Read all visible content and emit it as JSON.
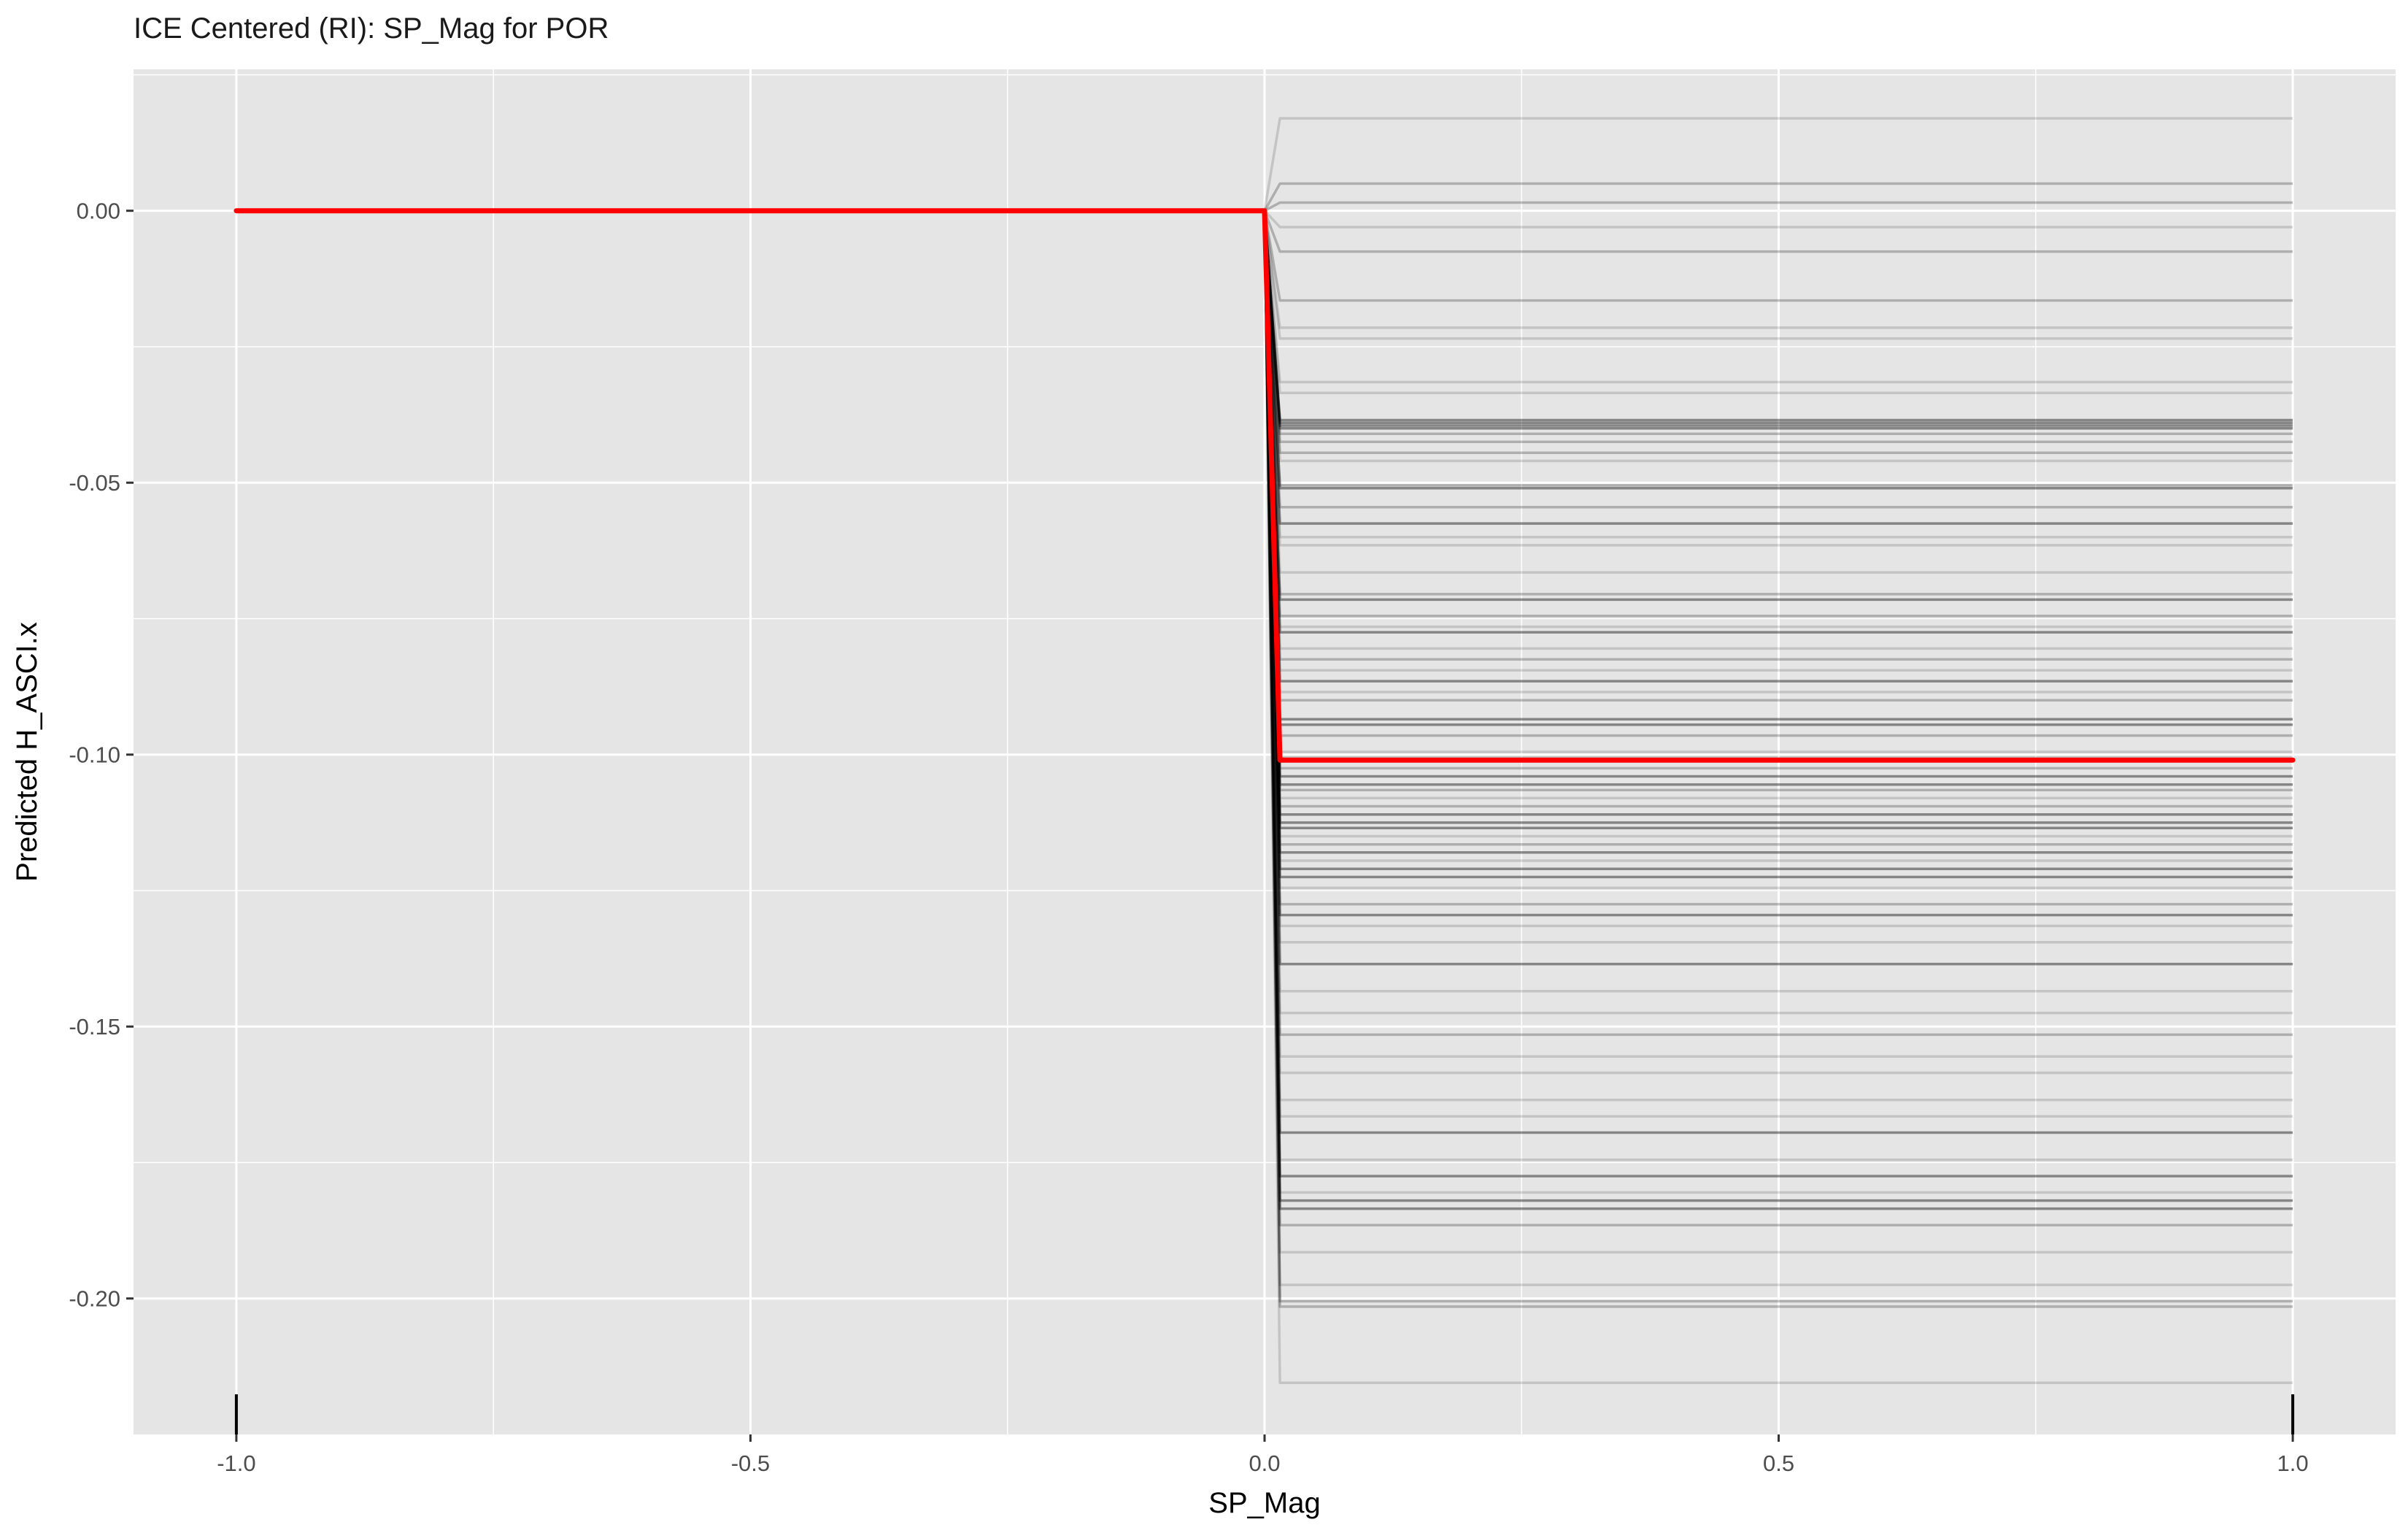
{
  "chart_data": {
    "type": "line",
    "title": "ICE Centered (RI): SP_Mag for POR",
    "xlabel": "SP_Mag",
    "ylabel": "Predicted H_ASCI.x",
    "xlim": [
      -1.1,
      1.1
    ],
    "ylim": [
      -0.225,
      0.026
    ],
    "x_ticks": [
      -1.0,
      -0.5,
      0.0,
      0.5,
      1.0
    ],
    "x_tick_labels": [
      "-1.0",
      "-0.5",
      "0.0",
      "0.5",
      "1.0"
    ],
    "y_ticks": [
      0.0,
      -0.05,
      -0.1,
      -0.15,
      -0.2
    ],
    "y_tick_labels": [
      "0.00",
      "-0.05",
      "-0.10",
      "-0.15",
      "-0.20"
    ],
    "grid": true,
    "rug_x": [
      -1.0,
      1.0
    ],
    "ice_curves": {
      "x": [
        -1.0,
        0.0,
        0.015,
        1.0
      ],
      "end_values": [
        0.017,
        0.005,
        0.0015,
        -0.003,
        -0.0075,
        -0.0165,
        -0.0215,
        -0.0235,
        -0.0315,
        -0.0335,
        -0.0385,
        -0.039,
        -0.0395,
        -0.04,
        -0.041,
        -0.0425,
        -0.0445,
        -0.046,
        -0.0505,
        -0.051,
        -0.0545,
        -0.0575,
        -0.06,
        -0.0615,
        -0.0665,
        -0.0705,
        -0.0715,
        -0.0745,
        -0.0765,
        -0.0775,
        -0.0805,
        -0.0825,
        -0.0845,
        -0.0865,
        -0.0885,
        -0.09,
        -0.0935,
        -0.0945,
        -0.0965,
        -0.0995,
        -0.1005,
        -0.1025,
        -0.104,
        -0.1055,
        -0.1065,
        -0.108,
        -0.1095,
        -0.111,
        -0.1125,
        -0.1135,
        -0.115,
        -0.1165,
        -0.118,
        -0.1195,
        -0.121,
        -0.1225,
        -0.1245,
        -0.1275,
        -0.1295,
        -0.1315,
        -0.1345,
        -0.1385,
        -0.1435,
        -0.1475,
        -0.1515,
        -0.1555,
        -0.1585,
        -0.1635,
        -0.1665,
        -0.1695,
        -0.1745,
        -0.1775,
        -0.1805,
        -0.182,
        -0.1835,
        -0.1865,
        -0.1915,
        -0.1975,
        -0.2005,
        -0.2015,
        -0.2155
      ],
      "strength": [
        1,
        2,
        2,
        1,
        2,
        2,
        1,
        1,
        1,
        1,
        3,
        3,
        3,
        3,
        2,
        2,
        2,
        1,
        2,
        3,
        2,
        3,
        1,
        1,
        1,
        2,
        3,
        2,
        1,
        3,
        1,
        2,
        1,
        3,
        1,
        2,
        3,
        3,
        2,
        1,
        1,
        2,
        3,
        3,
        2,
        1,
        2,
        3,
        3,
        3,
        1,
        2,
        3,
        1,
        3,
        3,
        1,
        2,
        3,
        1,
        1,
        3,
        1,
        1,
        2,
        1,
        1,
        1,
        1,
        3,
        1,
        3,
        1,
        3,
        3,
        2,
        1,
        1,
        2,
        2,
        1
      ]
    },
    "pdp_curve": {
      "color": "#ff0000",
      "x": [
        -1.0,
        0.0,
        0.015,
        1.0
      ],
      "y": [
        0.0,
        0.0,
        -0.101,
        -0.101
      ]
    },
    "colors": {
      "panel": "#e5e5e5",
      "grid": "#ffffff",
      "ice": "#000000",
      "pdp": "#ff0000"
    }
  }
}
